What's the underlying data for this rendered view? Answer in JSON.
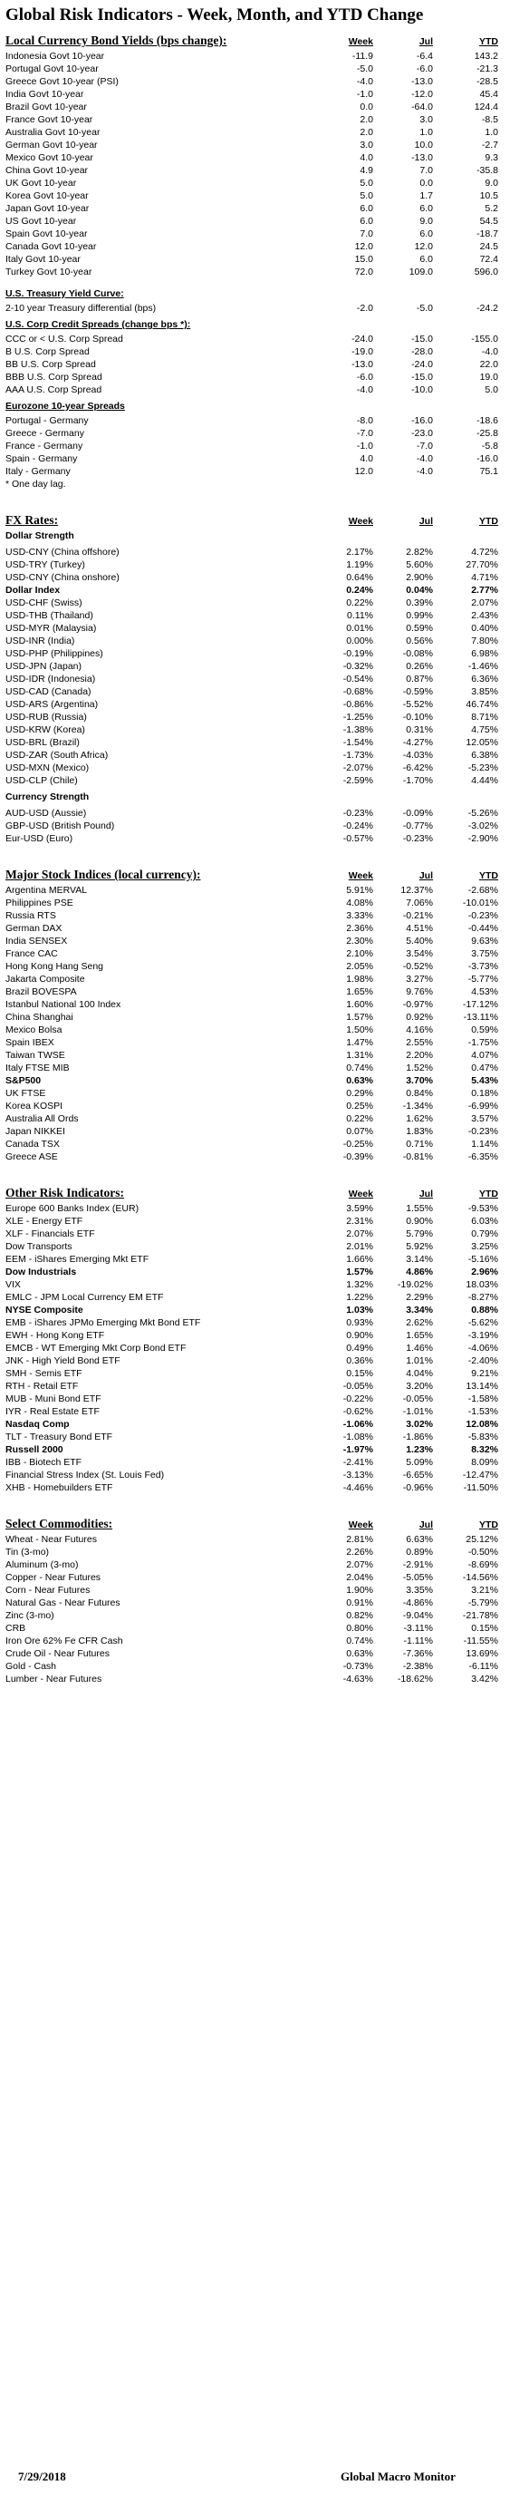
{
  "title": "Global Risk Indicators - Week, Month, and YTD Change",
  "columns": {
    "week": "Week",
    "jul": "Jul",
    "ytd": "YTD"
  },
  "sections": [
    {
      "kind": "head",
      "text": "Local Currency Bond Yields (bps change):",
      "big": true,
      "cols": true
    },
    {
      "kind": "row",
      "label": "Indonesia Govt 10-year",
      "week": "-11.9",
      "jul": "-6.4",
      "ytd": "143.2"
    },
    {
      "kind": "row",
      "label": "Portugal Govt 10-year",
      "week": "-5.0",
      "jul": "-6.0",
      "ytd": "-21.3"
    },
    {
      "kind": "row",
      "label": "Greece Govt 10-year (PSI)",
      "week": "-4.0",
      "jul": "-13.0",
      "ytd": "-28.5"
    },
    {
      "kind": "row",
      "label": "India Govt 10-year",
      "week": "-1.0",
      "jul": "-12.0",
      "ytd": "45.4"
    },
    {
      "kind": "row",
      "label": "Brazil Govt 10-year",
      "week": "0.0",
      "jul": "-64.0",
      "ytd": "124.4"
    },
    {
      "kind": "row",
      "label": "France Govt 10-year",
      "week": "2.0",
      "jul": "3.0",
      "ytd": "-8.5"
    },
    {
      "kind": "row",
      "label": "Australia Govt 10-year",
      "week": "2.0",
      "jul": "1.0",
      "ytd": "1.0"
    },
    {
      "kind": "row",
      "label": "German Govt 10-year",
      "week": "3.0",
      "jul": "10.0",
      "ytd": "-2.7"
    },
    {
      "kind": "row",
      "label": "Mexico Govt 10-year",
      "week": "4.0",
      "jul": "-13.0",
      "ytd": "9.3"
    },
    {
      "kind": "row",
      "label": "China Govt 10-year",
      "week": "4.9",
      "jul": "7.0",
      "ytd": "-35.8"
    },
    {
      "kind": "row",
      "label": "UK Govt 10-year",
      "week": "5.0",
      "jul": "0.0",
      "ytd": "9.0"
    },
    {
      "kind": "row",
      "label": "Korea Govt 10-year",
      "week": "5.0",
      "jul": "1.7",
      "ytd": "10.5"
    },
    {
      "kind": "row",
      "label": "Japan Govt 10-year",
      "week": "6.0",
      "jul": "6.0",
      "ytd": "5.2"
    },
    {
      "kind": "row",
      "label": "US Govt 10-year",
      "week": "6.0",
      "jul": "9.0",
      "ytd": "54.5"
    },
    {
      "kind": "row",
      "label": "Spain Govt 10-year",
      "week": "7.0",
      "jul": "6.0",
      "ytd": "-18.7"
    },
    {
      "kind": "row",
      "label": "Canada Govt 10-year",
      "week": "12.0",
      "jul": "12.0",
      "ytd": "24.5"
    },
    {
      "kind": "row",
      "label": "Italy Govt 10-year",
      "week": "15.0",
      "jul": "6.0",
      "ytd": "72.4"
    },
    {
      "kind": "row",
      "label": "Turkey Govt 10-year",
      "week": "72.0",
      "jul": "109.0",
      "ytd": "596.0"
    },
    {
      "kind": "gap",
      "h": 10
    },
    {
      "kind": "head",
      "text": "U.S. Treasury Yield Curve:",
      "big": false,
      "cols": false
    },
    {
      "kind": "row",
      "label": "2-10 year Treasury differential (bps)",
      "week": "-2.0",
      "jul": "-5.0",
      "ytd": "-24.2"
    },
    {
      "kind": "gap",
      "h": 4
    },
    {
      "kind": "head",
      "text": "U.S. Corp Credit Spreads (change bps *):",
      "big": false,
      "cols": false
    },
    {
      "kind": "row",
      "label": "CCC or < U.S. Corp Spread",
      "week": "-24.0",
      "jul": "-15.0",
      "ytd": "-155.0"
    },
    {
      "kind": "row",
      "label": "B U.S. Corp Spread",
      "week": "-19.0",
      "jul": "-28.0",
      "ytd": "-4.0"
    },
    {
      "kind": "row",
      "label": "BB U.S. Corp Spread",
      "week": "-13.0",
      "jul": "-24.0",
      "ytd": "22.0"
    },
    {
      "kind": "row",
      "label": "BBB U.S. Corp Spread",
      "week": "-6.0",
      "jul": "-15.0",
      "ytd": "19.0"
    },
    {
      "kind": "row",
      "label": "AAA U.S. Corp Spread",
      "week": "-4.0",
      "jul": "-10.0",
      "ytd": "5.0"
    },
    {
      "kind": "gap",
      "h": 4
    },
    {
      "kind": "head",
      "text": "Eurozone 10-year Spreads",
      "big": false,
      "cols": false
    },
    {
      "kind": "row",
      "label": "Portugal - Germany",
      "week": "-8.0",
      "jul": "-16.0",
      "ytd": "-18.6"
    },
    {
      "kind": "row",
      "label": "Greece - Germany",
      "week": "-7.0",
      "jul": "-23.0",
      "ytd": "-25.8"
    },
    {
      "kind": "row",
      "label": "France - Germany",
      "week": "-1.0",
      "jul": "-7.0",
      "ytd": "-5.8"
    },
    {
      "kind": "row",
      "label": "Spain - Germany",
      "week": "4.0",
      "jul": "-4.0",
      "ytd": "-16.0"
    },
    {
      "kind": "row",
      "label": "Italy - Germany",
      "week": "12.0",
      "jul": "-4.0",
      "ytd": "75.1"
    },
    {
      "kind": "note",
      "text": "* One day lag."
    },
    {
      "kind": "gap",
      "h": 24
    },
    {
      "kind": "head",
      "text": "FX Rates:",
      "big": true,
      "cols": true
    },
    {
      "kind": "sub",
      "text": "Dollar Strength"
    },
    {
      "kind": "gap",
      "h": 4
    },
    {
      "kind": "row",
      "label": "USD-CNY (China offshore)",
      "week": "2.17%",
      "jul": "2.82%",
      "ytd": "4.72%"
    },
    {
      "kind": "row",
      "label": "USD-TRY (Turkey)",
      "week": "1.19%",
      "jul": "5.60%",
      "ytd": "27.70%"
    },
    {
      "kind": "row",
      "label": "USD-CNY (China onshore)",
      "week": "0.64%",
      "jul": "2.90%",
      "ytd": "4.71%"
    },
    {
      "kind": "row",
      "label": "Dollar Index",
      "week": "0.24%",
      "jul": "0.04%",
      "ytd": "2.77%",
      "bold": true
    },
    {
      "kind": "row",
      "label": "USD-CHF (Swiss)",
      "week": "0.22%",
      "jul": "0.39%",
      "ytd": "2.07%"
    },
    {
      "kind": "row",
      "label": "USD-THB  (Thailand)",
      "week": "0.11%",
      "jul": "0.99%",
      "ytd": "2.43%"
    },
    {
      "kind": "row",
      "label": "USD-MYR (Malaysia)",
      "week": "0.01%",
      "jul": "0.59%",
      "ytd": "0.40%"
    },
    {
      "kind": "row",
      "label": "USD-INR (India)",
      "week": "0.00%",
      "jul": "0.56%",
      "ytd": "7.80%"
    },
    {
      "kind": "row",
      "label": "USD-PHP (Philippines)",
      "week": "-0.19%",
      "jul": "-0.08%",
      "ytd": "6.98%"
    },
    {
      "kind": "row",
      "label": "USD-JPN (Japan)",
      "week": "-0.32%",
      "jul": "0.26%",
      "ytd": "-1.46%"
    },
    {
      "kind": "row",
      "label": "USD-IDR (Indonesia)",
      "week": "-0.54%",
      "jul": "0.87%",
      "ytd": "6.36%"
    },
    {
      "kind": "row",
      "label": "USD-CAD (Canada)",
      "week": "-0.68%",
      "jul": "-0.59%",
      "ytd": "3.85%"
    },
    {
      "kind": "row",
      "label": "USD-ARS (Argentina)",
      "week": "-0.86%",
      "jul": "-5.52%",
      "ytd": "46.74%"
    },
    {
      "kind": "row",
      "label": "USD-RUB (Russia)",
      "week": "-1.25%",
      "jul": "-0.10%",
      "ytd": "8.71%"
    },
    {
      "kind": "row",
      "label": "USD-KRW (Korea)",
      "week": "-1.38%",
      "jul": "0.31%",
      "ytd": "4.75%"
    },
    {
      "kind": "row",
      "label": "USD-BRL (Brazil)",
      "week": "-1.54%",
      "jul": "-4.27%",
      "ytd": "12.05%"
    },
    {
      "kind": "row",
      "label": "USD-ZAR (South Africa)",
      "week": "-1.73%",
      "jul": "-4.03%",
      "ytd": "6.38%"
    },
    {
      "kind": "row",
      "label": "USD-MXN  (Mexico)",
      "week": "-2.07%",
      "jul": "-6.42%",
      "ytd": "-5.23%"
    },
    {
      "kind": "row",
      "label": "USD-CLP (Chile)",
      "week": "-2.59%",
      "jul": "-1.70%",
      "ytd": "4.44%"
    },
    {
      "kind": "gap",
      "h": 4
    },
    {
      "kind": "sub",
      "text": "Currency Strength"
    },
    {
      "kind": "gap",
      "h": 4
    },
    {
      "kind": "row",
      "label": "AUD-USD (Aussie)",
      "week": "-0.23%",
      "jul": "-0.09%",
      "ytd": "-5.26%"
    },
    {
      "kind": "row",
      "label": "GBP-USD (British Pound)",
      "week": "-0.24%",
      "jul": "-0.77%",
      "ytd": "-3.02%"
    },
    {
      "kind": "row",
      "label": "Eur-USD (Euro)",
      "week": "-0.57%",
      "jul": "-0.23%",
      "ytd": "-2.90%"
    },
    {
      "kind": "gap",
      "h": 24
    },
    {
      "kind": "head",
      "text": "Major Stock Indices (local currency):",
      "big": true,
      "cols": true
    },
    {
      "kind": "row",
      "label": "Argentina MERVAL",
      "week": "5.91%",
      "jul": "12.37%",
      "ytd": "-2.68%"
    },
    {
      "kind": "row",
      "label": "Philippines PSE",
      "week": "4.08%",
      "jul": "7.06%",
      "ytd": "-10.01%"
    },
    {
      "kind": "row",
      "label": "Russia RTS",
      "week": "3.33%",
      "jul": "-0.21%",
      "ytd": "-0.23%"
    },
    {
      "kind": "row",
      "label": "German DAX",
      "week": "2.36%",
      "jul": "4.51%",
      "ytd": "-0.44%"
    },
    {
      "kind": "row",
      "label": "India SENSEX",
      "week": "2.30%",
      "jul": "5.40%",
      "ytd": "9.63%"
    },
    {
      "kind": "row",
      "label": "France CAC",
      "week": "2.10%",
      "jul": "3.54%",
      "ytd": "3.75%"
    },
    {
      "kind": "row",
      "label": "Hong Kong Hang Seng",
      "week": "2.05%",
      "jul": "-0.52%",
      "ytd": "-3.73%"
    },
    {
      "kind": "row",
      "label": "Jakarta Composite",
      "week": "1.98%",
      "jul": "3.27%",
      "ytd": "-5.77%"
    },
    {
      "kind": "row",
      "label": "Brazil BOVESPA",
      "week": "1.65%",
      "jul": "9.76%",
      "ytd": "4.53%"
    },
    {
      "kind": "row",
      "label": "Istanbul National 100 Index",
      "week": "1.60%",
      "jul": "-0.97%",
      "ytd": "-17.12%"
    },
    {
      "kind": "row",
      "label": "China Shanghai",
      "week": "1.57%",
      "jul": "0.92%",
      "ytd": "-13.11%"
    },
    {
      "kind": "row",
      "label": "Mexico Bolsa",
      "week": "1.50%",
      "jul": "4.16%",
      "ytd": "0.59%"
    },
    {
      "kind": "row",
      "label": "Spain IBEX",
      "week": "1.47%",
      "jul": "2.55%",
      "ytd": "-1.75%"
    },
    {
      "kind": "row",
      "label": "Taiwan  TWSE",
      "week": "1.31%",
      "jul": "2.20%",
      "ytd": "4.07%"
    },
    {
      "kind": "row",
      "label": "Italy FTSE MIB",
      "week": "0.74%",
      "jul": "1.52%",
      "ytd": "0.47%"
    },
    {
      "kind": "row",
      "label": "S&P500",
      "week": "0.63%",
      "jul": "3.70%",
      "ytd": "5.43%",
      "bold": true
    },
    {
      "kind": "row",
      "label": "UK FTSE",
      "week": "0.29%",
      "jul": "0.84%",
      "ytd": "0.18%"
    },
    {
      "kind": "row",
      "label": "Korea KOSPI",
      "week": "0.25%",
      "jul": "-1.34%",
      "ytd": "-6.99%"
    },
    {
      "kind": "row",
      "label": "Australia All Ords",
      "week": "0.22%",
      "jul": "1.62%",
      "ytd": "3.57%"
    },
    {
      "kind": "row",
      "label": "Japan NIKKEI",
      "week": "0.07%",
      "jul": "1.83%",
      "ytd": "-0.23%"
    },
    {
      "kind": "row",
      "label": "Canada TSX",
      "week": "-0.25%",
      "jul": "0.71%",
      "ytd": "1.14%"
    },
    {
      "kind": "row",
      "label": "Greece ASE",
      "week": "-0.39%",
      "jul": "-0.81%",
      "ytd": "-6.35%"
    },
    {
      "kind": "gap",
      "h": 24
    },
    {
      "kind": "head",
      "text": "Other Risk Indicators:",
      "big": true,
      "cols": true
    },
    {
      "kind": "row",
      "label": "Europe 600 Banks Index (EUR)",
      "week": "3.59%",
      "jul": "1.55%",
      "ytd": "-9.53%"
    },
    {
      "kind": "row",
      "label": "XLE - Energy ETF",
      "week": "2.31%",
      "jul": "0.90%",
      "ytd": "6.03%"
    },
    {
      "kind": "row",
      "label": "XLF - Financials ETF",
      "week": "2.07%",
      "jul": "5.79%",
      "ytd": "0.79%"
    },
    {
      "kind": "row",
      "label": "Dow Transports",
      "week": "2.01%",
      "jul": "5.92%",
      "ytd": "3.25%"
    },
    {
      "kind": "row",
      "label": "EEM - iShares Emerging Mkt ETF",
      "week": "1.66%",
      "jul": "3.14%",
      "ytd": "-5.16%"
    },
    {
      "kind": "row",
      "label": "Dow Industrials",
      "week": "1.57%",
      "jul": "4.86%",
      "ytd": "2.96%",
      "bold": true
    },
    {
      "kind": "row",
      "label": "VIX",
      "week": "1.32%",
      "jul": "-19.02%",
      "ytd": "18.03%"
    },
    {
      "kind": "row",
      "label": "EMLC - JPM Local Currency EM ETF",
      "week": "1.22%",
      "jul": "2.29%",
      "ytd": "-8.27%"
    },
    {
      "kind": "row",
      "label": "NYSE Composite",
      "week": "1.03%",
      "jul": "3.34%",
      "ytd": "0.88%",
      "bold": true
    },
    {
      "kind": "row",
      "label": "EMB - iShares JPMo Emerging Mkt Bond ETF",
      "week": "0.93%",
      "jul": "2.62%",
      "ytd": "-5.62%"
    },
    {
      "kind": "row",
      "label": "EWH - Hong Kong ETF",
      "week": "0.90%",
      "jul": "1.65%",
      "ytd": "-3.19%"
    },
    {
      "kind": "row",
      "label": "EMCB - WT Emerging Mkt Corp Bond ETF",
      "week": "0.49%",
      "jul": "1.46%",
      "ytd": "-4.06%"
    },
    {
      "kind": "row",
      "label": "JNK - High Yield Bond ETF",
      "week": "0.36%",
      "jul": "1.01%",
      "ytd": "-2.40%"
    },
    {
      "kind": "row",
      "label": "SMH - Semis ETF",
      "week": "0.15%",
      "jul": "4.04%",
      "ytd": "9.21%"
    },
    {
      "kind": "row",
      "label": "RTH - Retail ETF",
      "week": "-0.05%",
      "jul": "3.20%",
      "ytd": "13.14%"
    },
    {
      "kind": "row",
      "label": "MUB - Muni Bond ETF",
      "week": "-0.22%",
      "jul": "-0.05%",
      "ytd": "-1.58%"
    },
    {
      "kind": "row",
      "label": "IYR - Real Estate ETF",
      "week": "-0.62%",
      "jul": "-1.01%",
      "ytd": "-1.53%"
    },
    {
      "kind": "row",
      "label": "Nasdaq Comp",
      "week": "-1.06%",
      "jul": "3.02%",
      "ytd": "12.08%",
      "bold": true
    },
    {
      "kind": "row",
      "label": "TLT - Treasury Bond ETF",
      "week": "-1.08%",
      "jul": "-1.86%",
      "ytd": "-5.83%"
    },
    {
      "kind": "row",
      "label": "Russell 2000",
      "week": "-1.97%",
      "jul": "1.23%",
      "ytd": "8.32%",
      "bold": true
    },
    {
      "kind": "row",
      "label": "IBB - Biotech ETF",
      "week": "-2.41%",
      "jul": "5.09%",
      "ytd": "8.09%"
    },
    {
      "kind": "row",
      "label": "Financial Stress Index (St. Louis Fed)",
      "week": "-3.13%",
      "jul": "-6.65%",
      "ytd": "-12.47%"
    },
    {
      "kind": "row",
      "label": "XHB - Homebuilders ETF",
      "week": "-4.46%",
      "jul": "-0.96%",
      "ytd": "-11.50%"
    },
    {
      "kind": "gap",
      "h": 24
    },
    {
      "kind": "head",
      "text": "Select Commodities:",
      "big": true,
      "cols": true
    },
    {
      "kind": "row",
      "label": "Wheat - Near Futures",
      "week": "2.81%",
      "jul": "6.63%",
      "ytd": "25.12%"
    },
    {
      "kind": "row",
      "label": "Tin (3-mo)",
      "week": "2.26%",
      "jul": "0.89%",
      "ytd": "-0.50%"
    },
    {
      "kind": "row",
      "label": "Aluminum (3-mo)",
      "week": "2.07%",
      "jul": "-2.91%",
      "ytd": "-8.69%"
    },
    {
      "kind": "row",
      "label": "Copper - Near Futures",
      "week": "2.04%",
      "jul": "-5.05%",
      "ytd": "-14.56%"
    },
    {
      "kind": "row",
      "label": "Corn - Near Futures",
      "week": "1.90%",
      "jul": "3.35%",
      "ytd": "3.21%"
    },
    {
      "kind": "row",
      "label": "Natural Gas - Near Futures",
      "week": "0.91%",
      "jul": "-4.86%",
      "ytd": "-5.79%"
    },
    {
      "kind": "row",
      "label": "Zinc (3-mo)",
      "week": "0.82%",
      "jul": "-9.04%",
      "ytd": "-21.78%"
    },
    {
      "kind": "row",
      "label": "CRB",
      "week": "0.80%",
      "jul": "-3.11%",
      "ytd": "0.15%"
    },
    {
      "kind": "row",
      "label": "Iron Ore 62% Fe CFR Cash",
      "week": "0.74%",
      "jul": "-1.11%",
      "ytd": "-11.55%"
    },
    {
      "kind": "row",
      "label": "Crude Oil - Near Futures",
      "week": "0.63%",
      "jul": "-7.36%",
      "ytd": "13.69%"
    },
    {
      "kind": "row",
      "label": "Gold - Cash",
      "week": "-0.73%",
      "jul": "-2.38%",
      "ytd": "-6.11%"
    },
    {
      "kind": "row",
      "label": "Lumber - Near Futures",
      "week": "-4.63%",
      "jul": "-18.62%",
      "ytd": "3.42%"
    }
  ],
  "footer": {
    "date": "7/29/2018",
    "brand": "Global Macro Monitor"
  }
}
